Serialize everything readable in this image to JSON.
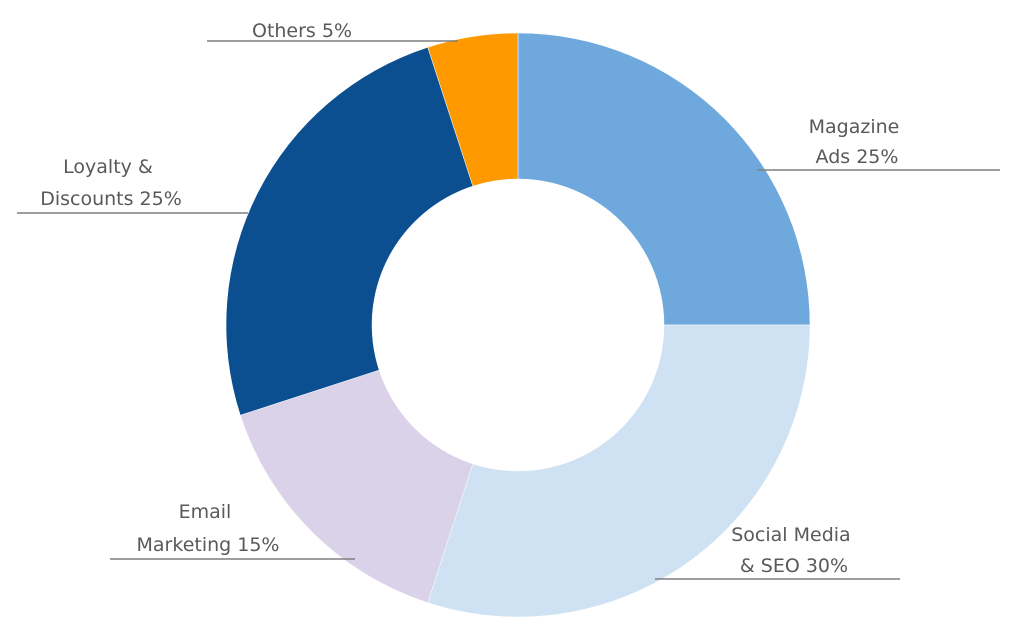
{
  "chart_data": {
    "type": "pie",
    "variant": "donut",
    "start_angle_deg": 0,
    "direction": "clockwise",
    "slices": [
      {
        "name": "Magazine Ads",
        "label_lines": [
          "Magazine",
          "Ads  25%"
        ],
        "value": 25,
        "color": "#6fa8dc"
      },
      {
        "name": "Social Media & SEO",
        "label_lines": [
          "Social Media",
          "& SEO 30%"
        ],
        "value": 30,
        "color": "#cfe2f3"
      },
      {
        "name": "Email Marketing",
        "label_lines": [
          "Email",
          "Marketing  15%"
        ],
        "value": 15,
        "color": "#d9d2e9"
      },
      {
        "name": "Loyalty & Discounts",
        "label_lines": [
          "Loyalty &",
          "Discounts 25%"
        ],
        "value": 25,
        "color": "#0b4f91"
      },
      {
        "name": "Others",
        "label_lines": [
          "Others  5%"
        ],
        "value": 5,
        "color": "#ff9900"
      }
    ],
    "title": "",
    "legend": "none",
    "grid": false
  }
}
